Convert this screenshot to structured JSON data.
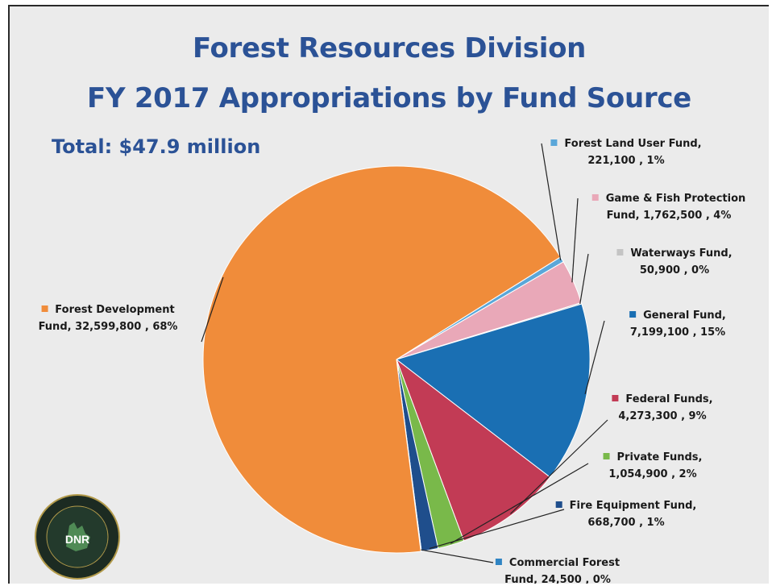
{
  "slide": {
    "title_line1": "Forest Resources Division",
    "title_line2": "FY 2017 Appropriations by Fund Source",
    "total": "Total: $47.9 million"
  },
  "logo": {
    "text": "DNR",
    "ring_text": "DEPARTMENT OF NATURAL RESOURCES · MICHIGAN"
  },
  "chart_data": {
    "type": "pie",
    "title": "FY 2017 Appropriations by Fund Source",
    "start_angle_deg": -32,
    "slices": [
      {
        "name": "Forest Land User Fund",
        "value": 221100,
        "value_label": "221,100",
        "percent_label": "1%",
        "color": "#5aa7d9",
        "line1": "Forest Land User Fund,",
        "line2": "221,100 , 1%"
      },
      {
        "name": "Game & Fish Protection Fund",
        "value": 1762500,
        "value_label": "1,762,500",
        "percent_label": "4%",
        "color": "#e9a8b8",
        "line1": "Game & Fish Protection",
        "line2": "Fund, 1,762,500 , 4%"
      },
      {
        "name": "Waterways Fund",
        "value": 50900,
        "value_label": "50,900",
        "percent_label": "0%",
        "color": "#c4c4c4",
        "line1": "Waterways Fund,",
        "line2": "50,900 , 0%"
      },
      {
        "name": "General Fund",
        "value": 7199100,
        "value_label": "7,199,100",
        "percent_label": "15%",
        "color": "#1a6fb3",
        "line1": "General Fund,",
        "line2": "7,199,100 , 15%"
      },
      {
        "name": "Federal Funds",
        "value": 4273300,
        "value_label": "4,273,300",
        "percent_label": "9%",
        "color": "#c23b55",
        "line1": "Federal Funds,",
        "line2": "4,273,300 , 9%"
      },
      {
        "name": "Private Funds",
        "value": 1054900,
        "value_label": "1,054,900",
        "percent_label": "2%",
        "color": "#79b94a",
        "line1": "Private Funds,",
        "line2": "1,054,900 , 2%"
      },
      {
        "name": "Fire Equipment Fund",
        "value": 668700,
        "value_label": "668,700",
        "percent_label": "1%",
        "color": "#1f4e8c",
        "line1": "Fire Equipment Fund,",
        "line2": "668,700 , 1%"
      },
      {
        "name": "Commercial Forest Fund",
        "value": 24500,
        "value_label": "24,500",
        "percent_label": "0%",
        "color": "#2f84c3",
        "line1": "Commercial Forest",
        "line2": "Fund, 24,500 , 0%"
      },
      {
        "name": "Forest Development Fund",
        "value": 32599800,
        "value_label": "32,599,800",
        "percent_label": "68%",
        "color": "#f08c3a",
        "line1": "Forest Development",
        "line2": "Fund, 32,599,800 , 68%"
      }
    ]
  }
}
